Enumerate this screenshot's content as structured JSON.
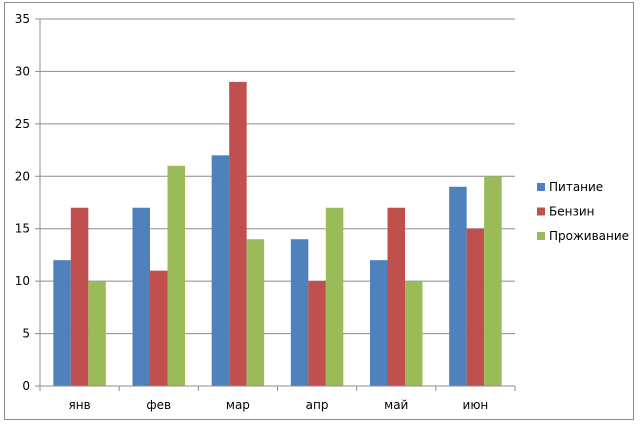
{
  "chart_data": {
    "type": "bar",
    "categories": [
      "янв",
      "фев",
      "мар",
      "апр",
      "май",
      "июн"
    ],
    "series": [
      {
        "name": "Питание",
        "color": "#4f81bd",
        "values": [
          12,
          17,
          22,
          14,
          12,
          19
        ]
      },
      {
        "name": "Бензин",
        "color": "#c0504d",
        "values": [
          17,
          11,
          29,
          10,
          17,
          15
        ]
      },
      {
        "name": "Проживание",
        "color": "#9bbb59",
        "values": [
          10,
          21,
          14,
          17,
          10,
          20
        ]
      }
    ],
    "ylim": [
      0,
      35
    ],
    "yticks": [
      "0",
      "5",
      "10",
      "15",
      "20",
      "25",
      "30",
      "35"
    ],
    "grid": true,
    "legend_position": "right",
    "title": "",
    "xlabel": "",
    "ylabel": ""
  }
}
